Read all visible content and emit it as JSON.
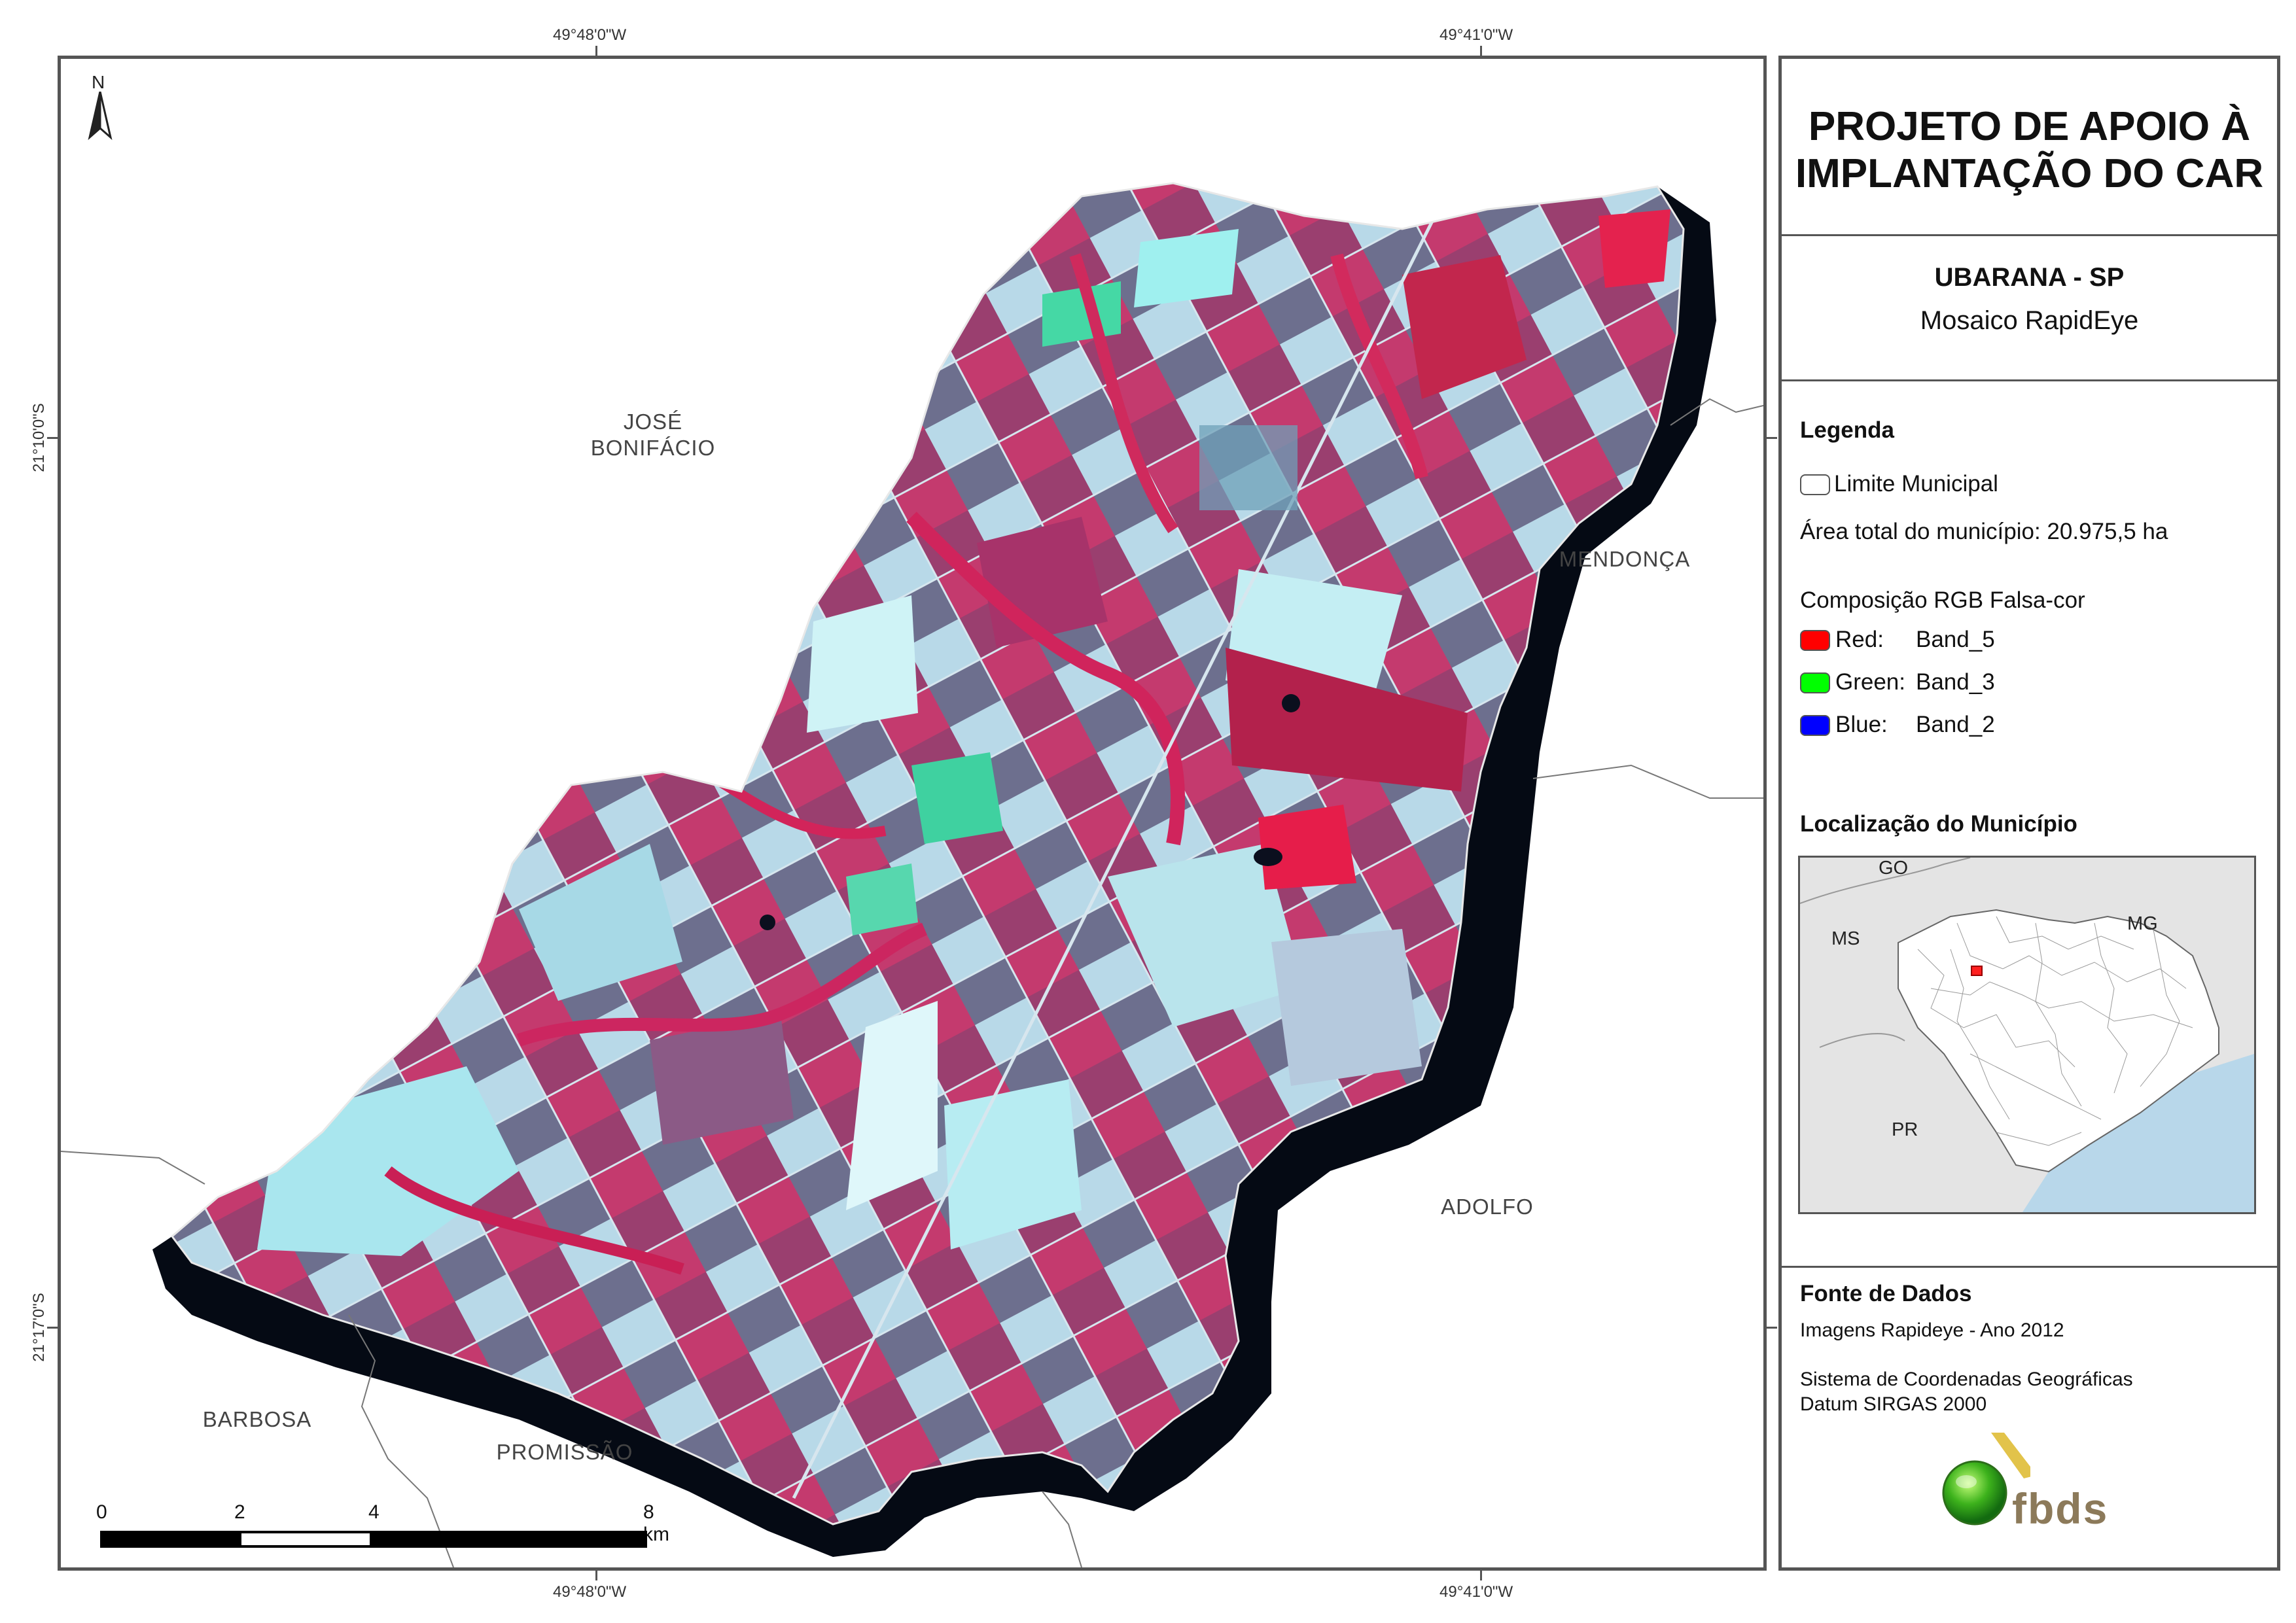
{
  "map": {
    "graticule": {
      "lon_top_left": "49°48'0\"W",
      "lon_top_right": "49°41'0\"W",
      "lon_bottom_left": "49°48'0\"W",
      "lon_bottom_right": "49°41'0\"W",
      "lat_top": "21°10'0\"S",
      "lat_bottom": "21°17'0\"S"
    },
    "north_arrow": "N",
    "neighbors": {
      "jose_line1": "JOSÉ",
      "jose_line2": "BONIFÁCIO",
      "mendonca": "MENDONÇA",
      "adolfo": "ADOLFO",
      "barbosa": "BARBOSA",
      "promissao": "PROMISSÃO"
    },
    "scale_bar": {
      "l0": "0",
      "l2": "2",
      "l4": "4",
      "l8": "8 km"
    },
    "colors": {
      "vegetation_red": "#c8285a",
      "soil_cyan": "#a8e8ef",
      "water_black": "#050a14"
    }
  },
  "panel": {
    "title_line1": "PROJETO DE APOIO À",
    "title_line2": "IMPLANTAÇÃO DO CAR",
    "municipality": "UBARANA - SP",
    "mosaic": "Mosaico RapidEye",
    "legend": {
      "heading": "Legenda",
      "boundary": "Limite Municipal",
      "area": "Área total do município: 20.975,5 ha",
      "composition": "Composição RGB Falsa-cor",
      "bands": [
        {
          "channel": "Red:",
          "band": "Band_5",
          "color": "#ff0000"
        },
        {
          "channel": "Green:",
          "band": "Band_3",
          "color": "#00ff00"
        },
        {
          "channel": "Blue:",
          "band": "Band_2",
          "color": "#0000ff"
        }
      ]
    },
    "location": {
      "heading": "Localização do Município",
      "states": {
        "go": "GO",
        "ms": "MS",
        "mg": "MG",
        "pr": "PR"
      }
    },
    "sources": {
      "heading": "Fonte de Dados",
      "line1": "Imagens Rapideye - Ano 2012",
      "line2": "Sistema de Coordenadas Geográficas",
      "line3": "Datum SIRGAS 2000"
    },
    "logo": "fbds"
  }
}
